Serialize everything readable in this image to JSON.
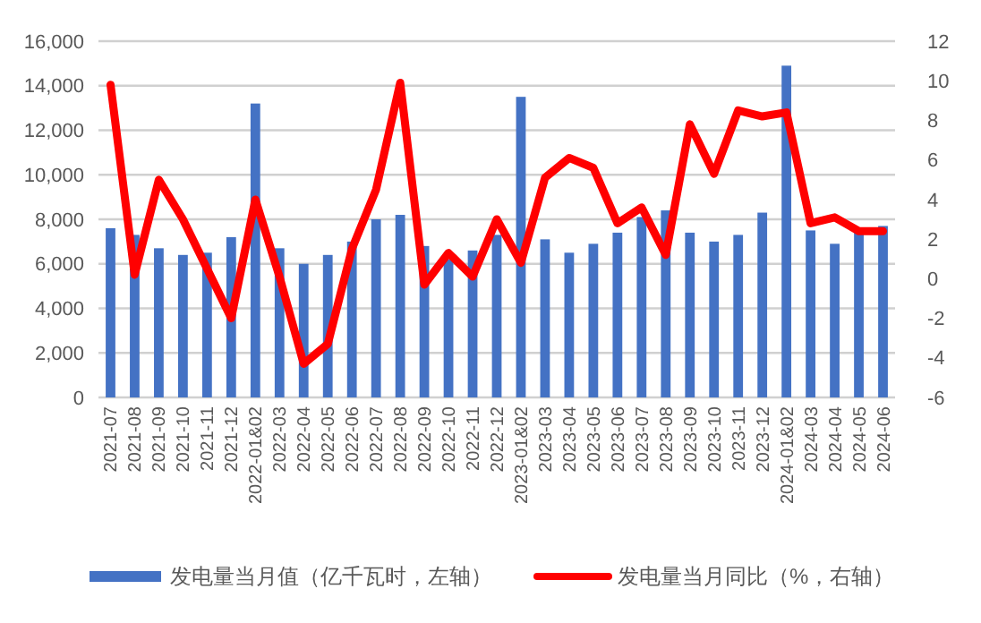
{
  "chart_data": {
    "type": "bar",
    "categories": [
      "2021-07",
      "2021-08",
      "2021-09",
      "2021-10",
      "2021-11",
      "2021-12",
      "2022-01&02",
      "2022-03",
      "2022-04",
      "2022-05",
      "2022-06",
      "2022-07",
      "2022-08",
      "2022-09",
      "2022-10",
      "2022-11",
      "2022-12",
      "2023-01&02",
      "2023-03",
      "2023-04",
      "2023-05",
      "2023-06",
      "2023-07",
      "2023-08",
      "2023-09",
      "2023-10",
      "2023-11",
      "2023-12",
      "2024-01&02",
      "2024-03",
      "2024-04",
      "2024-05",
      "2024-06"
    ],
    "series": [
      {
        "name": "发电量当月值（亿千瓦时，左轴）",
        "color": "#4472c4",
        "values": [
          7600,
          7300,
          6700,
          6400,
          6500,
          7200,
          13200,
          6700,
          6000,
          6400,
          7000,
          8000,
          8200,
          6800,
          6200,
          6600,
          7300,
          13500,
          7100,
          6500,
          6900,
          7400,
          8100,
          8400,
          7400,
          7000,
          7300,
          8300,
          14900,
          7500,
          6900,
          7500,
          7700
        ]
      },
      {
        "name": "发电量当月同比（%，右轴）",
        "type": "line",
        "axis": "y2",
        "color": "#ff0000",
        "values": [
          9.8,
          0.2,
          5.0,
          3.0,
          0.5,
          -2.0,
          4.0,
          0.1,
          -4.3,
          -3.3,
          1.5,
          4.5,
          9.9,
          -0.3,
          1.3,
          0.1,
          3.0,
          0.8,
          5.1,
          6.1,
          5.6,
          2.8,
          3.6,
          1.2,
          7.8,
          5.3,
          8.5,
          8.2,
          8.4,
          2.8,
          3.1,
          2.4,
          2.4
        ]
      }
    ],
    "ylim": [
      0,
      16000
    ],
    "yticks": [
      {
        "value": 0,
        "label": "0"
      },
      {
        "value": 2000,
        "label": "2,000"
      },
      {
        "value": 4000,
        "label": "4,000"
      },
      {
        "value": 6000,
        "label": "6,000"
      },
      {
        "value": 8000,
        "label": "8,000"
      },
      {
        "value": 10000,
        "label": "10,000"
      },
      {
        "value": 12000,
        "label": "12,000"
      },
      {
        "value": 14000,
        "label": "14,000"
      },
      {
        "value": 16000,
        "label": "16,000"
      }
    ],
    "y2lim": [
      -6,
      12
    ],
    "y2ticks": [
      -6,
      -4,
      -2,
      0,
      2,
      4,
      6,
      8,
      10,
      12
    ],
    "grid": "y",
    "legend": "bottom"
  }
}
